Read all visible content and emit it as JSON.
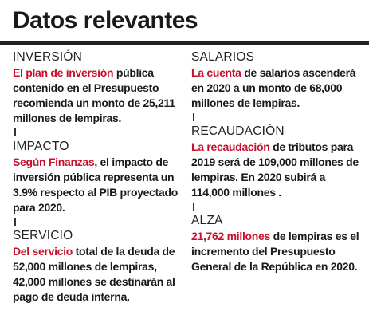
{
  "header": {
    "title": "Datos relevantes"
  },
  "colors": {
    "accent": "#c8102e",
    "text": "#1a1a1a",
    "rule": "#222222"
  },
  "left": [
    {
      "label": "INVERSIÓN",
      "highlight": "El plan de inversión",
      "text": " pública contenido en el Presupuesto recomienda un monto de 25,211 millones de lempiras."
    },
    {
      "label": "IMPACTO",
      "highlight": "Según Finanzas",
      "text": ", el impacto de inversión pública representa un 3.9% respecto al PIB proyectado para 2020."
    },
    {
      "label": "SERVICIO",
      "highlight": "Del servicio",
      "text": " total de la deuda de 52,000 millones de lempiras, 42,000 millones se destinarán al pago de deuda interna."
    }
  ],
  "right": [
    {
      "label": "SALARIOS",
      "highlight": "La cuenta",
      "text": " de salarios ascenderá en 2020  a un monto de 68,000 millones de lempiras."
    },
    {
      "label": "RECAUDACIÓN",
      "highlight": "La recaudación",
      "text": " de tributos para 2019 será de 109,000 millones de lempiras. En 2020 subirá a 114,000 millones ."
    },
    {
      "label": "ALZA",
      "highlight": "21,762 millones",
      "text": " de lempiras es el incremento del Presupuesto General de la República en 2020."
    }
  ]
}
